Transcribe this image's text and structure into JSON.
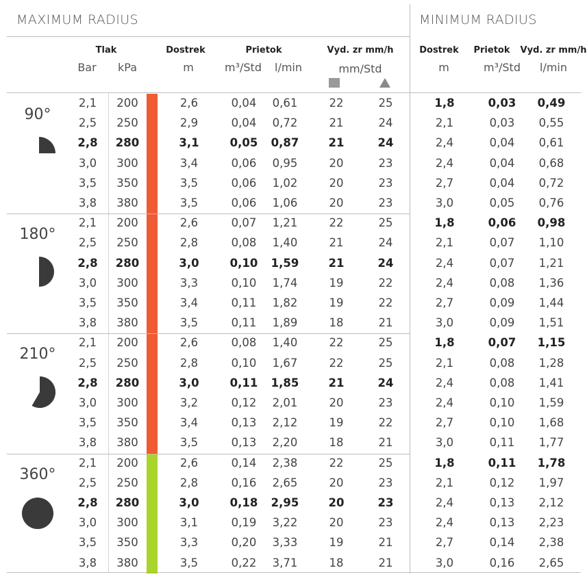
{
  "titles": {
    "max": "MAXIMUM RADIUS",
    "min": "MINIMUM RADIUS"
  },
  "headers": {
    "tlak": "Tlak",
    "bar": "Bar",
    "kpa": "kPa",
    "dostrek": "Dostrek",
    "dostrek_unit": "m",
    "prietok": "Prietok",
    "m3_std": "m³/Std",
    "l_min": "l/min",
    "vyd": "Vyd. zr mm/h",
    "vyd_unit": "mm/Std",
    "min_dostrek": "Dostrek",
    "min_dostrek_unit": "m",
    "min_prietok": "Prietok",
    "min_m3_std": "m³/Std",
    "min_vyd": "Vyd. zr mm/h",
    "min_l_min": "l/min"
  },
  "colors": {
    "orange": "#f05a35",
    "green": "#a8d42c",
    "icon": "#3a3a3a"
  },
  "groups": [
    {
      "angle": "90°",
      "icon": "quarter-circle-icon",
      "bar_color": "orange",
      "rows": [
        [
          "2,1",
          "200",
          "2,6",
          "0,04",
          "0,61",
          "22",
          "25",
          "1,8",
          "0,03",
          "0,49"
        ],
        [
          "2,5",
          "250",
          "2,9",
          "0,04",
          "0,72",
          "21",
          "24",
          "2,1",
          "0,03",
          "0,55"
        ],
        [
          "2,8",
          "280",
          "3,1",
          "0,05",
          "0,87",
          "21",
          "24",
          "2,4",
          "0,04",
          "0,61"
        ],
        [
          "3,0",
          "300",
          "3,4",
          "0,06",
          "0,95",
          "20",
          "23",
          "2,4",
          "0,04",
          "0,68"
        ],
        [
          "3,5",
          "350",
          "3,5",
          "0,06",
          "1,02",
          "20",
          "23",
          "2,7",
          "0,04",
          "0,72"
        ],
        [
          "3,8",
          "380",
          "3,5",
          "0,06",
          "1,06",
          "20",
          "23",
          "3,0",
          "0,05",
          "0,76"
        ]
      ]
    },
    {
      "angle": "180°",
      "icon": "half-circle-icon",
      "bar_color": "orange",
      "rows": [
        [
          "2,1",
          "200",
          "2,6",
          "0,07",
          "1,21",
          "22",
          "25",
          "1,8",
          "0,06",
          "0,98"
        ],
        [
          "2,5",
          "250",
          "2,8",
          "0,08",
          "1,40",
          "21",
          "24",
          "2,1",
          "0,07",
          "1,10"
        ],
        [
          "2,8",
          "280",
          "3,0",
          "0,10",
          "1,59",
          "21",
          "24",
          "2,4",
          "0,07",
          "1,21"
        ],
        [
          "3,0",
          "300",
          "3,3",
          "0,10",
          "1,74",
          "19",
          "22",
          "2,4",
          "0,08",
          "1,36"
        ],
        [
          "3,5",
          "350",
          "3,4",
          "0,11",
          "1,82",
          "19",
          "22",
          "2,7",
          "0,09",
          "1,44"
        ],
        [
          "3,8",
          "380",
          "3,5",
          "0,11",
          "1,89",
          "18",
          "21",
          "3,0",
          "0,09",
          "1,51"
        ]
      ]
    },
    {
      "angle": "210°",
      "icon": "210-degree-arc-icon",
      "bar_color": "orange",
      "rows": [
        [
          "2,1",
          "200",
          "2,6",
          "0,08",
          "1,40",
          "22",
          "25",
          "1,8",
          "0,07",
          "1,15"
        ],
        [
          "2,5",
          "250",
          "2,8",
          "0,10",
          "1,67",
          "22",
          "25",
          "2,1",
          "0,08",
          "1,28"
        ],
        [
          "2,8",
          "280",
          "3,0",
          "0,11",
          "1,85",
          "21",
          "24",
          "2,4",
          "0,08",
          "1,41"
        ],
        [
          "3,0",
          "300",
          "3,2",
          "0,12",
          "2,01",
          "20",
          "23",
          "2,4",
          "0,10",
          "1,59"
        ],
        [
          "3,5",
          "350",
          "3,4",
          "0,13",
          "2,12",
          "19",
          "22",
          "2,7",
          "0,10",
          "1,68"
        ],
        [
          "3,8",
          "380",
          "3,5",
          "0,13",
          "2,20",
          "18",
          "21",
          "3,0",
          "0,11",
          "1,77"
        ]
      ]
    },
    {
      "angle": "360°",
      "icon": "full-circle-icon",
      "bar_color": "green",
      "rows": [
        [
          "2,1",
          "200",
          "2,6",
          "0,14",
          "2,38",
          "22",
          "25",
          "1,8",
          "0,11",
          "1,78"
        ],
        [
          "2,5",
          "250",
          "2,8",
          "0,16",
          "2,65",
          "20",
          "23",
          "2,1",
          "0,12",
          "1,97"
        ],
        [
          "2,8",
          "280",
          "3,0",
          "0,18",
          "2,95",
          "20",
          "23",
          "2,4",
          "0,13",
          "2,12"
        ],
        [
          "3,0",
          "300",
          "3,1",
          "0,19",
          "3,22",
          "20",
          "23",
          "2,4",
          "0,13",
          "2,23"
        ],
        [
          "3,5",
          "350",
          "3,3",
          "0,20",
          "3,33",
          "19",
          "21",
          "2,7",
          "0,14",
          "2,38"
        ],
        [
          "3,8",
          "380",
          "3,5",
          "0,22",
          "3,71",
          "18",
          "21",
          "3,0",
          "0,16",
          "2,65"
        ]
      ]
    }
  ]
}
